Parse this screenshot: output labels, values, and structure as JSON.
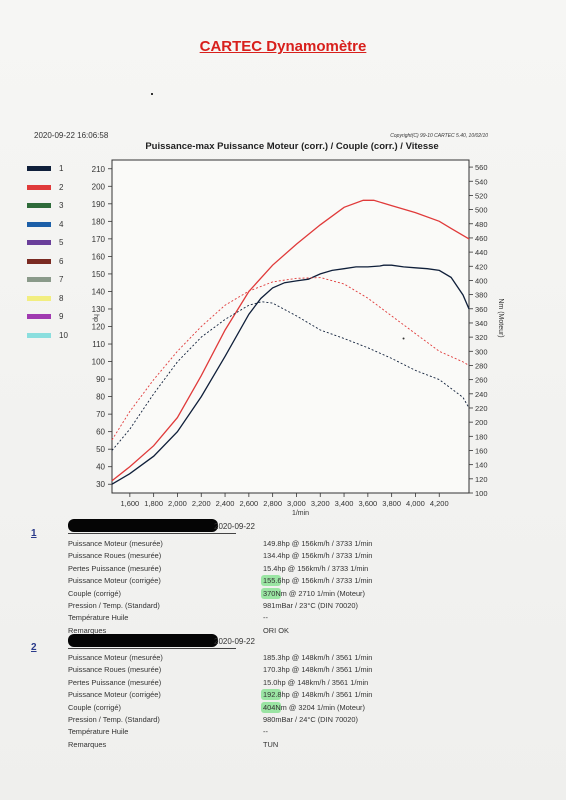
{
  "page": {
    "title": "CARTEC Dynamomètre",
    "datetime": "2020-09-22 16:06:58",
    "copyright": "Copyright(C) 99-10 CARTEC 5.40, 10/02/10"
  },
  "chart_data": {
    "type": "line",
    "title": "Puissance-max Puissance Moteur (corr.) / Couple (corr.) / Vitesse",
    "xlabel": "1/min",
    "ylabel_left": "hp",
    "ylabel_right": "Nm (Moteur)",
    "xlim": [
      1450,
      4450
    ],
    "x_ticks": [
      1600,
      1800,
      2000,
      2200,
      2400,
      2600,
      2800,
      3000,
      3200,
      3400,
      3600,
      3800,
      4000,
      4200
    ],
    "x_tick_labels": [
      "1,600",
      "1,800",
      "2,000",
      "2,200",
      "2,400",
      "2,600",
      "2,800",
      "3,000",
      "3,200",
      "3,400",
      "3,600",
      "3,800",
      "4,000",
      "4,200"
    ],
    "ylim_left": [
      25,
      215
    ],
    "y_ticks_left": [
      30,
      40,
      50,
      60,
      70,
      80,
      90,
      100,
      110,
      120,
      130,
      140,
      150,
      160,
      170,
      180,
      190,
      200,
      210
    ],
    "ylim_right": [
      100,
      570
    ],
    "y_ticks_right": [
      100,
      120,
      140,
      160,
      180,
      200,
      220,
      240,
      260,
      280,
      300,
      320,
      340,
      360,
      380,
      400,
      420,
      440,
      460,
      480,
      500,
      520,
      540,
      560
    ],
    "grid": false,
    "legend": {
      "position": "left",
      "entries": [
        {
          "label": "1",
          "color": "#0f1f3a"
        },
        {
          "label": "2",
          "color": "#e03a3a"
        },
        {
          "label": "3",
          "color": "#2e6b3a"
        },
        {
          "label": "4",
          "color": "#1c5fa8"
        },
        {
          "label": "5",
          "color": "#6a3f9a"
        },
        {
          "label": "6",
          "color": "#7a2a22"
        },
        {
          "label": "7",
          "color": "#8a9a8a"
        },
        {
          "label": "8",
          "color": "#f2ee80"
        },
        {
          "label": "9",
          "color": "#a03ab0"
        },
        {
          "label": "10",
          "color": "#8adede"
        }
      ]
    },
    "series": [
      {
        "name": "1",
        "kind": "power",
        "axis": "left",
        "color": "#0f1f3a",
        "style": "solid",
        "x": [
          1450,
          1600,
          1800,
          2000,
          2200,
          2400,
          2600,
          2700,
          2800,
          2900,
          3000,
          3100,
          3200,
          3300,
          3400,
          3500,
          3600,
          3700,
          3733,
          3800,
          3900,
          4000,
          4100,
          4200,
          4300,
          4400,
          4450
        ],
        "y": [
          30,
          36,
          46,
          60,
          80,
          103,
          127,
          136,
          142,
          145,
          146,
          147,
          150,
          152,
          153,
          154,
          154,
          154.5,
          155,
          155,
          154,
          153.5,
          153,
          152,
          148,
          138,
          130
        ]
      },
      {
        "name": "2",
        "kind": "power",
        "axis": "left",
        "color": "#e03a3a",
        "style": "solid",
        "x": [
          1450,
          1600,
          1800,
          2000,
          2200,
          2400,
          2600,
          2800,
          3000,
          3200,
          3400,
          3561,
          3650,
          3800,
          4000,
          4200,
          4300,
          4450
        ],
        "y": [
          32,
          40,
          52,
          68,
          92,
          118,
          140,
          155,
          167,
          178,
          188,
          192,
          192,
          189,
          185,
          180,
          176,
          170
        ]
      },
      {
        "name": "1",
        "kind": "torque",
        "axis": "right",
        "color": "#0f1f3a",
        "style": "dashed",
        "x": [
          1450,
          1600,
          1800,
          2000,
          2200,
          2400,
          2600,
          2710,
          2800,
          3000,
          3200,
          3400,
          3600,
          3800,
          4000,
          4200,
          4400,
          4450
        ],
        "y": [
          160,
          190,
          240,
          285,
          320,
          345,
          365,
          370,
          368,
          350,
          330,
          318,
          305,
          290,
          273,
          260,
          235,
          220
        ]
      },
      {
        "name": "2",
        "kind": "torque",
        "axis": "right",
        "color": "#e03a3a",
        "style": "dashed",
        "x": [
          1450,
          1600,
          1800,
          2000,
          2200,
          2400,
          2600,
          2800,
          3000,
          3204,
          3400,
          3600,
          3800,
          4000,
          4200,
          4400,
          4450
        ],
        "y": [
          175,
          215,
          260,
          300,
          335,
          365,
          385,
          398,
          403,
          404,
          395,
          375,
          350,
          325,
          300,
          285,
          280
        ]
      }
    ]
  },
  "runs": [
    {
      "number": "1",
      "date": "2020-09-22",
      "rows": [
        {
          "label": "Puissance Moteur (mesurée)",
          "value": "149.8hp @ 156km/h / 3733 1/min"
        },
        {
          "label": "Puissance Roues (mesurée)",
          "value": "134.4hp @ 156km/h / 3733 1/min"
        },
        {
          "label": "Pertes Puissance (mesurée)",
          "value": "15.4hp @ 156km/h / 3733 1/min"
        },
        {
          "label": "Puissance Moteur (corrigée)",
          "value": "155.6hp @ 156km/h / 3733 1/min"
        },
        {
          "label": "Couple (corrigé)",
          "value": "370Nm @ 2710 1/min (Moteur)"
        },
        {
          "label": "Pression / Temp. (Standard)",
          "value": "981mBar / 23°C   (DIN 70020)"
        },
        {
          "label": "Température Huile",
          "value": "--"
        },
        {
          "label": "Remarques",
          "value": "ORI OK"
        }
      ]
    },
    {
      "number": "2",
      "date": "2020-09-22",
      "rows": [
        {
          "label": "Puissance Moteur (mesurée)",
          "value": "185.3hp @ 148km/h / 3561 1/min"
        },
        {
          "label": "Puissance Roues (mesurée)",
          "value": "170.3hp @ 148km/h / 3561 1/min"
        },
        {
          "label": "Pertes Puissance (mesurée)",
          "value": "15.0hp @ 148km/h / 3561 1/min"
        },
        {
          "label": "Puissance Moteur (corrigée)",
          "value": "192.8hp @ 148km/h / 3561 1/min"
        },
        {
          "label": "Couple (corrigé)",
          "value": "404Nm @ 3204 1/min (Moteur)"
        },
        {
          "label": "Pression / Temp. (Standard)",
          "value": "980mBar / 24°C   (DIN 70020)"
        },
        {
          "label": "Température Huile",
          "value": "--"
        },
        {
          "label": "Remarques",
          "value": "TUN"
        }
      ]
    }
  ],
  "highlight_color": "#7ee08a"
}
